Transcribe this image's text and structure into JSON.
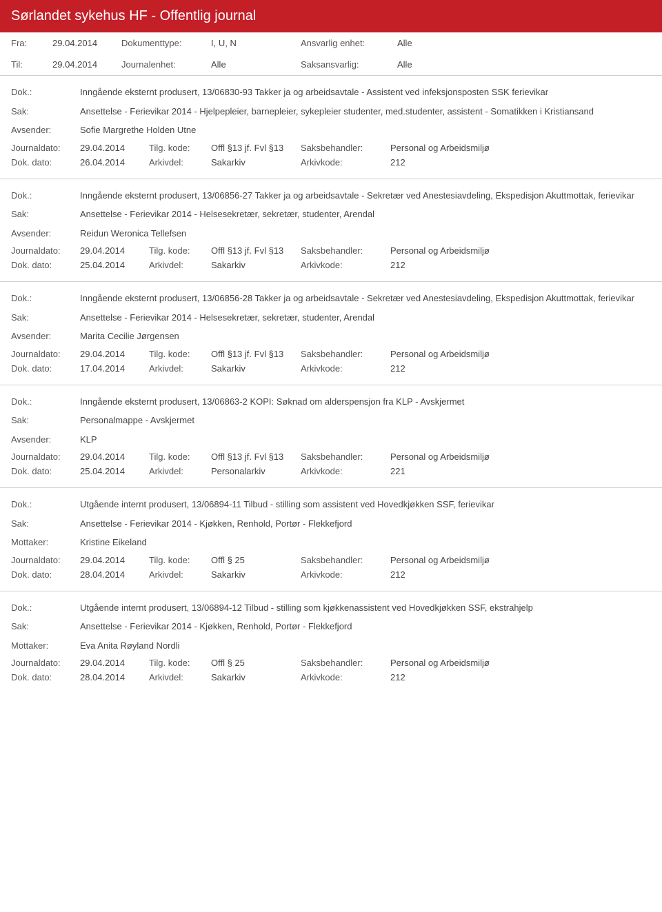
{
  "header": {
    "title": "Sørlandet sykehus HF - Offentlig journal"
  },
  "filters": {
    "fra_label": "Fra:",
    "fra_value": "29.04.2014",
    "til_label": "Til:",
    "til_value": "29.04.2014",
    "doktype_label": "Dokumenttype:",
    "doktype_value": "I, U, N",
    "journalenhet_label": "Journalenhet:",
    "journalenhet_value": "Alle",
    "ansvarlig_label": "Ansvarlig enhet:",
    "ansvarlig_value": "Alle",
    "saksansvarlig_label": "Saksansvarlig:",
    "saksansvarlig_value": "Alle"
  },
  "labels": {
    "dok": "Dok.:",
    "sak": "Sak:",
    "avsender": "Avsender:",
    "mottaker": "Mottaker:",
    "journaldato": "Journaldato:",
    "tilgkode": "Tilg. kode:",
    "saksbehandler": "Saksbehandler:",
    "dokdato": "Dok. dato:",
    "arkivdel": "Arkivdel:",
    "arkivkode": "Arkivkode:"
  },
  "entries": [
    {
      "dok": "Inngående eksternt produsert, 13/06830-93 Takker ja og arbeidsavtale - Assistent ved infeksjonsposten SSK ferievikar",
      "sak": "Ansettelse - Ferievikar 2014 - Hjelpepleier, barnepleier, sykepleier studenter, med.studenter, assistent - Somatikken i Kristiansand",
      "party_label": "avsender",
      "party": "Sofie Margrethe Holden Utne",
      "journaldato": "29.04.2014",
      "tilgkode": "Offl §13 jf. Fvl §13",
      "saksbehandler": "Personal og Arbeidsmiljø",
      "dokdato": "26.04.2014",
      "arkivdel": "Sakarkiv",
      "arkivkode": "212"
    },
    {
      "dok": "Inngående eksternt produsert, 13/06856-27 Takker ja og arbeidsavtale - Sekretær ved Anestesiavdeling, Ekspedisjon Akuttmottak, ferievikar",
      "sak": "Ansettelse - Ferievikar 2014 - Helsesekretær, sekretær, studenter, Arendal",
      "party_label": "avsender",
      "party": "Reidun Weronica Tellefsen",
      "journaldato": "29.04.2014",
      "tilgkode": "Offl §13 jf. Fvl §13",
      "saksbehandler": "Personal og Arbeidsmiljø",
      "dokdato": "25.04.2014",
      "arkivdel": "Sakarkiv",
      "arkivkode": "212"
    },
    {
      "dok": "Inngående eksternt produsert, 13/06856-28 Takker ja og arbeidsavtale - Sekretær ved Anestesiavdeling, Ekspedisjon Akuttmottak, ferievikar",
      "sak": "Ansettelse - Ferievikar 2014 - Helsesekretær, sekretær, studenter, Arendal",
      "party_label": "avsender",
      "party": "Marita Cecilie Jørgensen",
      "journaldato": "29.04.2014",
      "tilgkode": "Offl §13 jf. Fvl §13",
      "saksbehandler": "Personal og Arbeidsmiljø",
      "dokdato": "17.04.2014",
      "arkivdel": "Sakarkiv",
      "arkivkode": "212"
    },
    {
      "dok": "Inngående eksternt produsert, 13/06863-2 KOPI: Søknad om alderspensjon fra KLP - Avskjermet",
      "sak": "Personalmappe - Avskjermet",
      "party_label": "avsender",
      "party": "KLP",
      "journaldato": "29.04.2014",
      "tilgkode": "Offl §13 jf. Fvl §13",
      "saksbehandler": "Personal og Arbeidsmiljø",
      "dokdato": "25.04.2014",
      "arkivdel": "Personalarkiv",
      "arkivkode": "221"
    },
    {
      "dok": "Utgående internt produsert, 13/06894-11 Tilbud - stilling som assistent ved Hovedkjøkken SSF, ferievikar",
      "sak": "Ansettelse - Ferievikar 2014 - Kjøkken, Renhold, Portør - Flekkefjord",
      "party_label": "mottaker",
      "party": "Kristine Eikeland",
      "journaldato": "29.04.2014",
      "tilgkode": "Offl § 25",
      "saksbehandler": "Personal og Arbeidsmiljø",
      "dokdato": "28.04.2014",
      "arkivdel": "Sakarkiv",
      "arkivkode": "212"
    },
    {
      "dok": "Utgående internt produsert, 13/06894-12 Tilbud - stilling som kjøkkenassistent ved Hovedkjøkken SSF, ekstrahjelp",
      "sak": "Ansettelse - Ferievikar 2014 - Kjøkken, Renhold, Portør - Flekkefjord",
      "party_label": "mottaker",
      "party": "Eva Anita Røyland Nordli",
      "journaldato": "29.04.2014",
      "tilgkode": "Offl § 25",
      "saksbehandler": "Personal og Arbeidsmiljø",
      "dokdato": "28.04.2014",
      "arkivdel": "Sakarkiv",
      "arkivkode": "212"
    }
  ]
}
